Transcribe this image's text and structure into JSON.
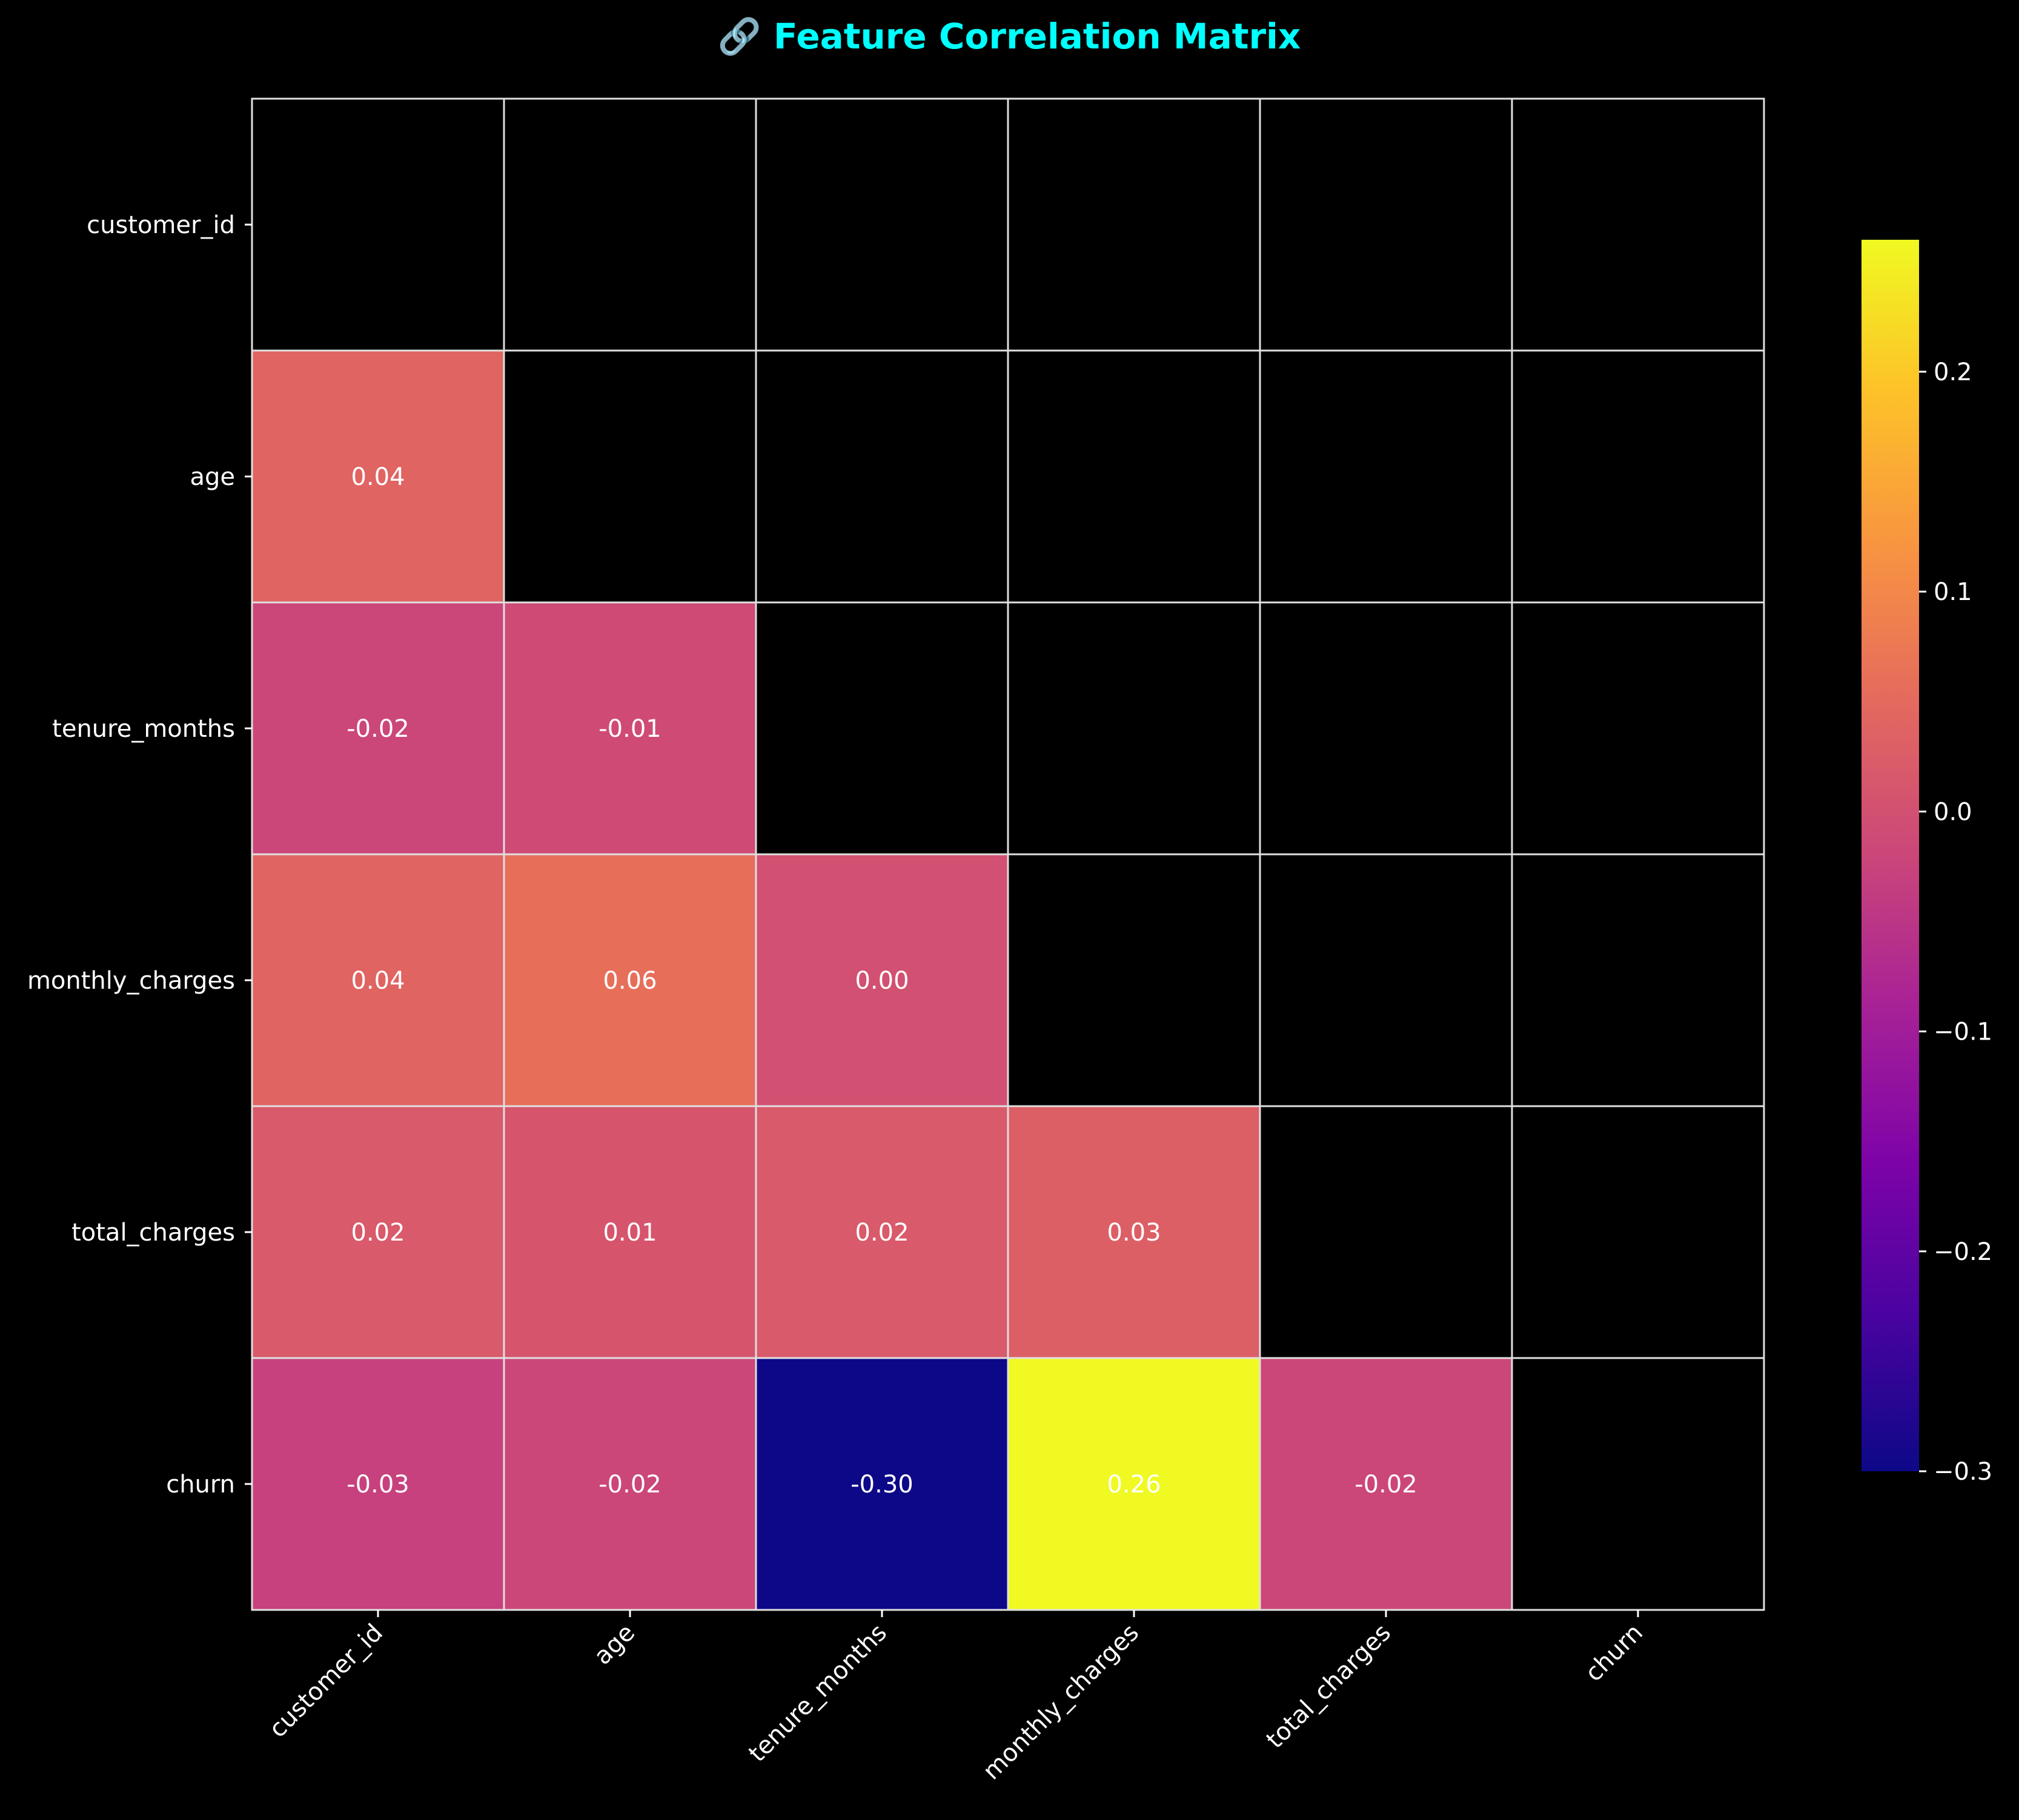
{
  "chart_data": {
    "type": "heatmap",
    "title": "🔗 Feature Correlation Matrix",
    "title_icon": "link-icon",
    "xlabel": "",
    "ylabel": "",
    "labels": [
      "customer_id",
      "age",
      "tenure_months",
      "monthly_charges",
      "total_charges",
      "churn"
    ],
    "mask": "upper-triangle-and-diagonal",
    "matrix": [
      [
        null,
        null,
        null,
        null,
        null,
        null
      ],
      [
        0.04,
        null,
        null,
        null,
        null,
        null
      ],
      [
        -0.02,
        -0.01,
        null,
        null,
        null,
        null
      ],
      [
        0.04,
        0.06,
        0.0,
        null,
        null,
        null
      ],
      [
        0.02,
        0.01,
        0.02,
        0.03,
        null,
        null
      ],
      [
        -0.03,
        -0.02,
        -0.3,
        0.26,
        -0.02,
        null
      ]
    ],
    "value_format": "2 decimals",
    "colormap": "plasma",
    "colorbar": {
      "range": [
        -0.3,
        0.26
      ],
      "ticks": [
        0.2,
        0.1,
        0.0,
        -0.1,
        -0.2,
        -0.3
      ],
      "tick_labels": [
        "0.2",
        "0.1",
        "0.0",
        "−0.1",
        "−0.2",
        "−0.3"
      ],
      "placement": "right"
    },
    "grid": true,
    "colors": {
      "background": "#000000",
      "title": "#00ffff",
      "text": "#ffffff",
      "cell_border": "#e0e0e0"
    }
  }
}
